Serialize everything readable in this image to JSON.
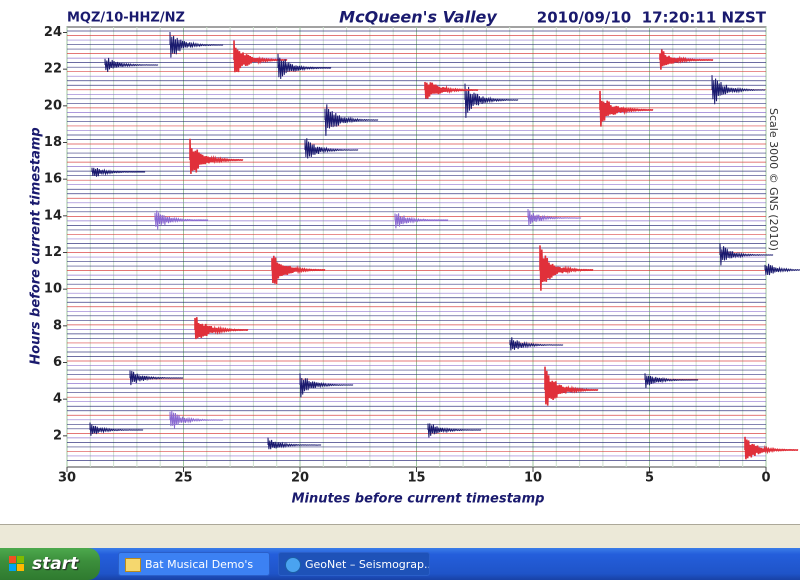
{
  "chart_data": {
    "type": "helicorder",
    "station": "MQZ/10-HHZ/NZ",
    "title": "McQueen's Valley",
    "timestamp": "2010/09/10  17:20:11 NZST",
    "scale_note": "Scale 3000 © GNS (2010)",
    "xlabel": "Minutes before current timestamp",
    "ylabel": "Hours before current timestamp",
    "xlim": [
      30,
      0
    ],
    "xticks": [
      30,
      25,
      20,
      15,
      10,
      5,
      0
    ],
    "ylim": [
      0.3,
      24.3
    ],
    "yticks": [
      2,
      4,
      6,
      8,
      10,
      12,
      14,
      16,
      18,
      20,
      22,
      24
    ],
    "grid": true
  },
  "taskbar": {
    "start": "start",
    "tasks": [
      "Bat Musical Demo's",
      "GeoNet – Seismograp..."
    ]
  }
}
